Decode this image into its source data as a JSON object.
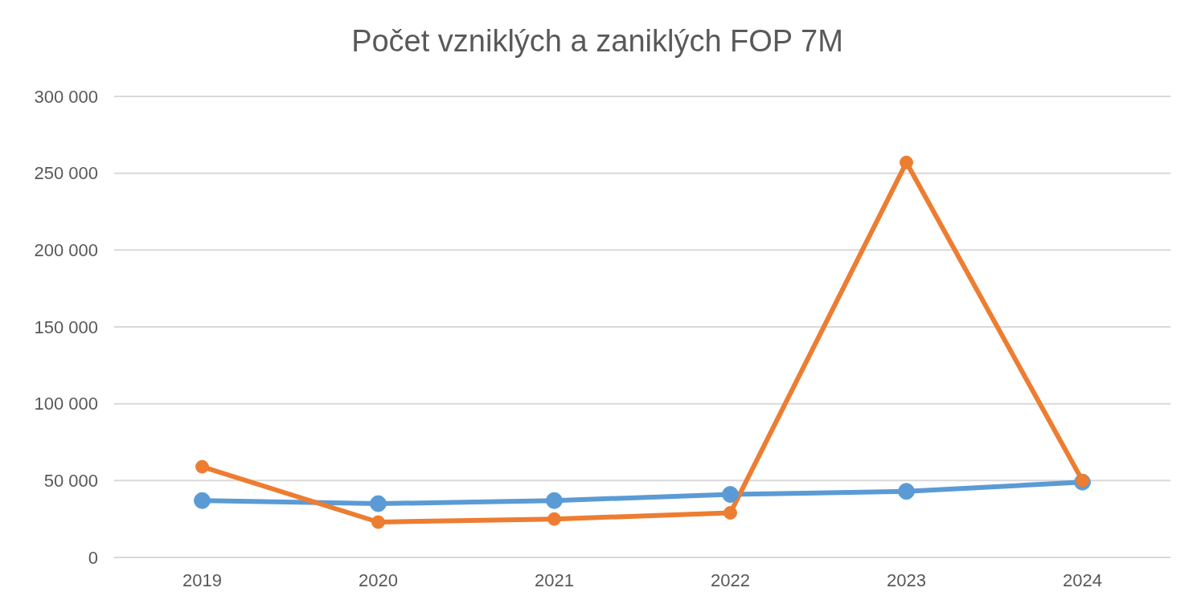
{
  "chart_data": {
    "type": "line",
    "title": "Počet vzniklých a zaniklých FOP 7M",
    "categories": [
      "2019",
      "2020",
      "2021",
      "2022",
      "2023",
      "2024"
    ],
    "series": [
      {
        "color": "#5b9bd5",
        "values": [
          37000,
          35000,
          37000,
          41000,
          43000,
          49000
        ]
      },
      {
        "color": "#ed7d31",
        "values": [
          59000,
          23000,
          25000,
          29000,
          257000,
          50000
        ]
      }
    ],
    "ylim": [
      0,
      300000
    ],
    "yticks": [
      {
        "value": 0,
        "label": "0"
      },
      {
        "value": 50000,
        "label": "50 000"
      },
      {
        "value": 100000,
        "label": "100 000"
      },
      {
        "value": 150000,
        "label": "150 000"
      },
      {
        "value": 200000,
        "label": "200 000"
      },
      {
        "value": 250000,
        "label": "250 000"
      },
      {
        "value": 300000,
        "label": "300 000"
      }
    ],
    "grid": "y",
    "legend": false,
    "marker": "circle",
    "line_style": "solid"
  }
}
